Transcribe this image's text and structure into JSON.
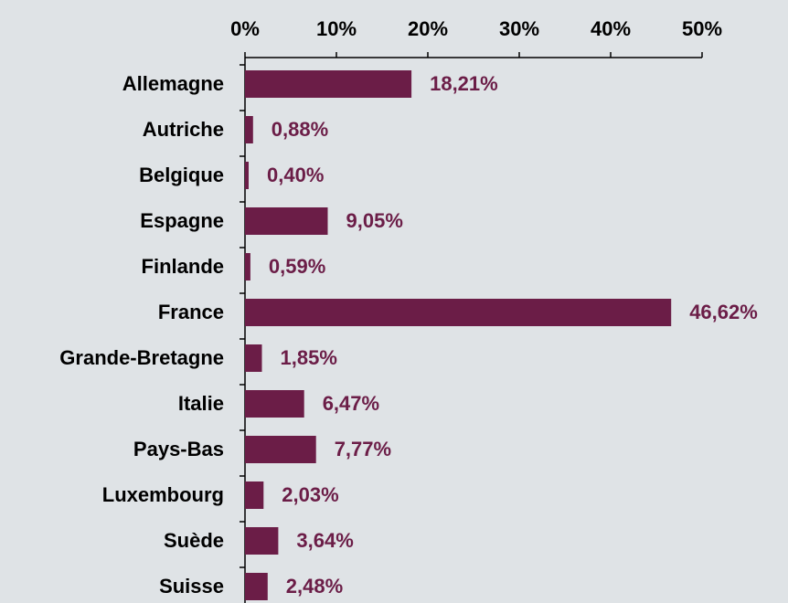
{
  "chart_data": {
    "type": "barh",
    "categories": [
      "Allemagne",
      "Autriche",
      "Belgique",
      "Espagne",
      "Finlande",
      "France",
      "Grande-Bretagne",
      "Italie",
      "Pays-Bas",
      "Luxembourg",
      "Suède",
      "Suisse"
    ],
    "values": [
      18.21,
      0.88,
      0.4,
      9.05,
      0.59,
      46.62,
      1.85,
      6.47,
      7.77,
      2.03,
      3.64,
      2.48
    ],
    "value_labels": [
      "18,21%",
      "0,88%",
      "0,40%",
      "9,05%",
      "0,59%",
      "46,62%",
      "1,85%",
      "6,47%",
      "7,77%",
      "2,03%",
      "3,64%",
      "2,48%"
    ],
    "color": "#6b1d47",
    "xlim": [
      0,
      50
    ],
    "xticks": [
      {
        "value": 0,
        "label": "0%"
      },
      {
        "value": 10,
        "label": "10%"
      },
      {
        "value": 20,
        "label": "20%"
      },
      {
        "value": 30,
        "label": "30%"
      },
      {
        "value": 40,
        "label": "40%"
      },
      {
        "value": 50,
        "label": "50%"
      }
    ]
  }
}
